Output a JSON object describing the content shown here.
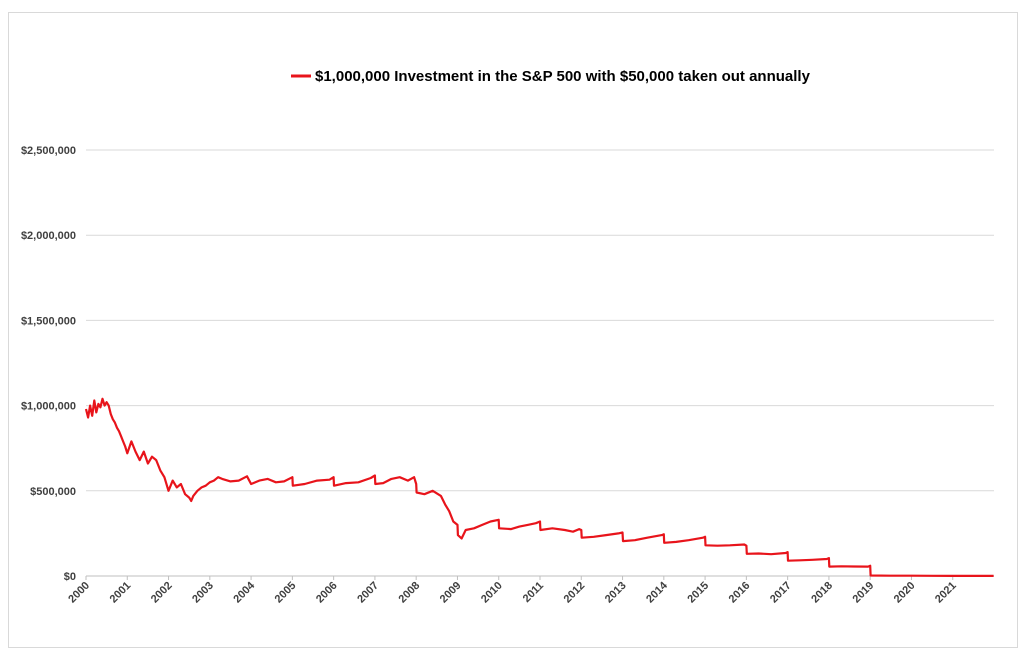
{
  "chart_data": {
    "type": "line",
    "title": "",
    "xlabel": "",
    "ylabel": "",
    "xlim": [
      2000,
      2022
    ],
    "ylim": [
      0,
      2500000
    ],
    "grid": true,
    "legend_position": "top-center",
    "y_ticks": [
      {
        "value": 0,
        "label": "$0"
      },
      {
        "value": 500000,
        "label": "$500,000"
      },
      {
        "value": 1000000,
        "label": "$1,000,000"
      },
      {
        "value": 1500000,
        "label": "$1,500,000"
      },
      {
        "value": 2000000,
        "label": "$2,000,000"
      },
      {
        "value": 2500000,
        "label": "$2,500,000"
      }
    ],
    "x_ticks": [
      "2000",
      "2001",
      "2002",
      "2003",
      "2004",
      "2005",
      "2006",
      "2007",
      "2008",
      "2009",
      "2010",
      "2011",
      "2012",
      "2013",
      "2014",
      "2015",
      "2016",
      "2017",
      "2018",
      "2019",
      "2020",
      "2021"
    ],
    "series": [
      {
        "name": "$1,000,000 Investment in the S&P 500 with $50,000 taken out annually",
        "color": "#e8141b",
        "x": [
          2000.0,
          2000.05,
          2000.1,
          2000.15,
          2000.2,
          2000.25,
          2000.3,
          2000.35,
          2000.4,
          2000.45,
          2000.5,
          2000.55,
          2000.6,
          2000.65,
          2000.7,
          2000.75,
          2000.8,
          2000.85,
          2000.9,
          2000.95,
          2001.0,
          2001.1,
          2001.2,
          2001.3,
          2001.4,
          2001.5,
          2001.6,
          2001.7,
          2001.8,
          2001.9,
          2002.0,
          2002.1,
          2002.2,
          2002.3,
          2002.4,
          2002.5,
          2002.55,
          2002.6,
          2002.7,
          2002.8,
          2002.9,
          2003.0,
          2003.1,
          2003.2,
          2003.3,
          2003.5,
          2003.7,
          2003.9,
          2004.0,
          2004.2,
          2004.4,
          2004.6,
          2004.8,
          2005.0,
          2005.01,
          2005.3,
          2005.6,
          2005.9,
          2006.0,
          2006.01,
          2006.3,
          2006.6,
          2006.9,
          2007.0,
          2007.01,
          2007.2,
          2007.4,
          2007.6,
          2007.8,
          2007.95,
          2008.0,
          2008.01,
          2008.2,
          2008.4,
          2008.6,
          2008.7,
          2008.8,
          2008.9,
          2009.0,
          2009.01,
          2009.1,
          2009.2,
          2009.4,
          2009.6,
          2009.8,
          2010.0,
          2010.01,
          2010.3,
          2010.5,
          2010.7,
          2010.9,
          2011.0,
          2011.01,
          2011.3,
          2011.6,
          2011.8,
          2011.95,
          2012.0,
          2012.01,
          2012.3,
          2012.6,
          2012.9,
          2013.0,
          2013.01,
          2013.3,
          2013.6,
          2013.95,
          2014.0,
          2014.01,
          2014.3,
          2014.6,
          2014.95,
          2015.0,
          2015.01,
          2015.3,
          2015.6,
          2015.95,
          2016.0,
          2016.01,
          2016.3,
          2016.6,
          2016.95,
          2017.0,
          2017.01,
          2017.3,
          2017.6,
          2017.95,
          2018.0,
          2018.01,
          2018.3,
          2018.6,
          2018.95,
          2019.0,
          2019.01,
          2019.5,
          2020.0,
          2020.5,
          2021.0,
          2021.5,
          2021.99
        ],
        "y": [
          980000,
          930000,
          1000000,
          940000,
          1030000,
          960000,
          1010000,
          990000,
          1040000,
          1000000,
          1020000,
          1000000,
          950000,
          920000,
          900000,
          870000,
          850000,
          820000,
          790000,
          760000,
          720000,
          790000,
          730000,
          680000,
          730000,
          660000,
          700000,
          680000,
          620000,
          580000,
          500000,
          560000,
          520000,
          540000,
          480000,
          460000,
          440000,
          470000,
          500000,
          520000,
          530000,
          550000,
          560000,
          580000,
          570000,
          555000,
          560000,
          585000,
          540000,
          560000,
          570000,
          550000,
          555000,
          580000,
          530000,
          540000,
          560000,
          565000,
          580000,
          530000,
          545000,
          550000,
          575000,
          590000,
          540000,
          545000,
          570000,
          580000,
          560000,
          580000,
          540000,
          490000,
          480000,
          500000,
          470000,
          420000,
          380000,
          320000,
          300000,
          240000,
          220000,
          270000,
          280000,
          300000,
          320000,
          330000,
          280000,
          275000,
          290000,
          300000,
          310000,
          320000,
          270000,
          280000,
          270000,
          260000,
          275000,
          270000,
          225000,
          230000,
          240000,
          250000,
          255000,
          205000,
          210000,
          225000,
          240000,
          245000,
          195000,
          200000,
          210000,
          225000,
          230000,
          180000,
          178000,
          180000,
          185000,
          178000,
          130000,
          132000,
          128000,
          135000,
          140000,
          90000,
          92000,
          95000,
          100000,
          105000,
          55000,
          57000,
          56000,
          55000,
          60000,
          3000,
          2000,
          1500,
          1000,
          800,
          500,
          300
        ]
      }
    ]
  }
}
